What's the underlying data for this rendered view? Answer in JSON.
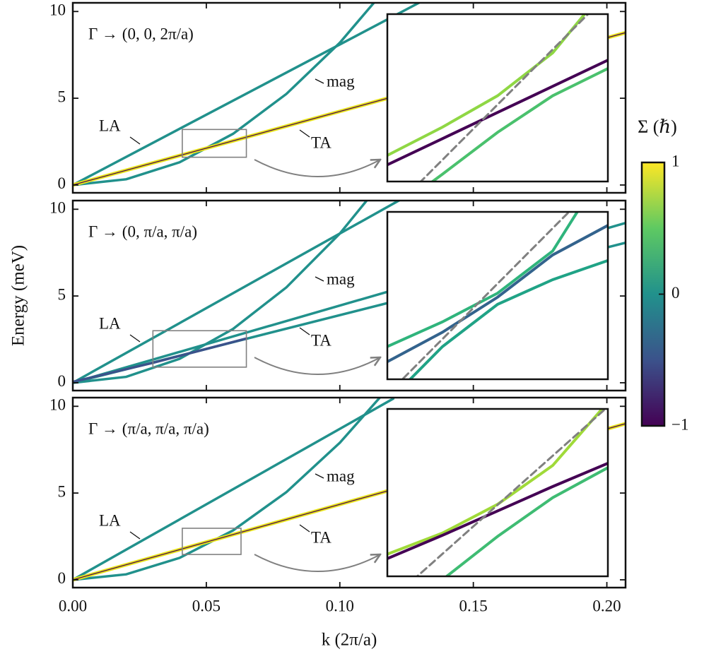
{
  "chart_data": [
    {
      "type": "line",
      "label": "Γ → (0, 0, 2π/a)",
      "xlim": [
        0,
        0.207
      ],
      "ylim": [
        -0.45,
        10.5
      ],
      "xticks": [
        0,
        0.05,
        0.1,
        0.15,
        0.2
      ],
      "yticks": [
        0,
        5,
        10
      ],
      "yticks_labels": [
        0,
        5,
        10
      ],
      "annotations": [
        "LA",
        "TA",
        "mag"
      ],
      "series": [
        {
          "color": "#21918c",
          "x": [
            0,
            0.13
          ],
          "values": [
            0,
            10.53
          ]
        },
        {
          "color": "#21918c",
          "x": [
            0,
            0.02,
            0.04,
            0.06,
            0.08,
            0.1,
            0.12
          ],
          "values": [
            0,
            0.33,
            1.31,
            2.95,
            5.25,
            8.2,
            11.81
          ]
        },
        {
          "color": "#e8e41a",
          "x": [
            0,
            0.207
          ],
          "values": [
            0,
            8.78
          ]
        },
        {
          "color": "#440154",
          "x": [
            0,
            0.207
          ],
          "values": [
            0,
            8.78
          ]
        }
      ],
      "inset": {
        "xlim": [
          0.041,
          0.065
        ],
        "ylim": [
          1.6,
          3.2
        ],
        "series": [
          {
            "color": "#8fd744",
            "x": [
              0.041,
              0.047,
              0.053,
              0.059,
              0.065
            ],
            "values": [
              1.85,
              2.12,
              2.42,
              2.83,
              3.47
            ]
          },
          {
            "color": "#440154",
            "x": [
              0.041,
              0.047,
              0.053,
              0.059,
              0.065
            ],
            "values": [
              1.76,
              2.01,
              2.26,
              2.51,
              2.76
            ]
          },
          {
            "color": "#4ac16d",
            "x": [
              0.041,
              0.047,
              0.053,
              0.059,
              0.065
            ],
            "values": [
              1.28,
              1.67,
              2.07,
              2.42,
              2.68
            ]
          },
          {
            "color": "#808080",
            "dashed": true,
            "x": [
              0.041,
              0.065
            ],
            "values": [
              1.28,
              3.39
            ]
          }
        ]
      }
    },
    {
      "type": "line",
      "label": "Γ → (0, π/a, π/a)",
      "ylabel": "Energy (meV)",
      "xlim": [
        0,
        0.207
      ],
      "ylim": [
        -0.45,
        10.5
      ],
      "xticks": [
        0,
        0.05,
        0.1,
        0.15,
        0.2
      ],
      "yticks": [
        0,
        5,
        10
      ],
      "annotations": [
        "LA",
        "TA",
        "mag"
      ],
      "series": [
        {
          "color": "#21918c",
          "x": [
            0,
            0.125
          ],
          "values": [
            0,
            10.75
          ]
        },
        {
          "color": "#21918c",
          "x": [
            0,
            0.02,
            0.04,
            0.06,
            0.08,
            0.1,
            0.12
          ],
          "values": [
            0,
            0.34,
            1.38,
            3.1,
            5.5,
            8.6,
            12.38
          ]
        },
        {
          "color": "#21918c",
          "x": [
            0,
            0.207
          ],
          "values": [
            0,
            9.21
          ]
        },
        {
          "color": "#21918c",
          "x": [
            0,
            0.207
          ],
          "values": [
            0,
            8.07
          ]
        },
        {
          "color": "#3b528b",
          "x": [
            0,
            0.03,
            0.065
          ],
          "values": [
            0.05,
            1.15,
            2.55
          ]
        }
      ],
      "inset": {
        "xlim": [
          0.03,
          0.065
        ],
        "ylim": [
          0.9,
          3.0
        ],
        "series": [
          {
            "color": "#2fb47c",
            "x": [
              0.03,
              0.03875,
              0.0475,
              0.05625,
              0.065
            ],
            "values": [
              1.31,
              1.62,
              1.98,
              2.51,
              3.61
            ]
          },
          {
            "color": "#33638d",
            "x": [
              0.03,
              0.03875,
              0.0475,
              0.05625,
              0.065
            ],
            "values": [
              1.12,
              1.49,
              1.93,
              2.46,
              2.83
            ]
          },
          {
            "color": "#20a386",
            "x": [
              0.03,
              0.03875,
              0.0475,
              0.05625,
              0.065
            ],
            "values": [
              0.61,
              1.31,
              1.84,
              2.15,
              2.39
            ]
          },
          {
            "color": "#808080",
            "dashed": true,
            "x": [
              0.03,
              0.065
            ],
            "values": [
              0.71,
              3.49
            ]
          }
        ]
      }
    },
    {
      "type": "line",
      "label": "Γ → (π/a, π/a, π/a)",
      "xlabel": "k (2π/a)",
      "xlim": [
        0,
        0.207
      ],
      "ylim": [
        -0.45,
        10.5
      ],
      "xticks": [
        {
          "value": 0,
          "label": "0.00"
        },
        0.05,
        {
          "value": 0.1,
          "label": "0.10"
        },
        0.15,
        {
          "value": 0.2,
          "label": "0.20"
        }
      ],
      "xtick_labels": true,
      "yticks": [
        0,
        5,
        10
      ],
      "annotations": [
        "LA",
        "TA",
        "mag"
      ],
      "series": [
        {
          "color": "#21918c",
          "x": [
            0,
            0.12
          ],
          "values": [
            0,
            10.44
          ]
        },
        {
          "color": "#21918c",
          "x": [
            0,
            0.02,
            0.04,
            0.06,
            0.08,
            0.1,
            0.12
          ],
          "values": [
            0,
            0.316,
            1.264,
            2.844,
            5.056,
            7.9,
            11.376
          ]
        },
        {
          "color": "#e8e41a",
          "x": [
            0,
            0.207
          ],
          "values": [
            0,
            9.0
          ]
        },
        {
          "color": "#440154",
          "x": [
            0,
            0.207
          ],
          "values": [
            0,
            9.0
          ]
        }
      ],
      "inset": {
        "xlim": [
          0.041,
          0.063
        ],
        "ylim": [
          1.46,
          2.97
        ],
        "series": [
          {
            "color": "#a0da39",
            "x": [
              0.041,
              0.0465,
              0.052,
              0.0575,
              0.063
            ],
            "values": [
              1.66,
              1.85,
              2.11,
              2.46,
              3.03
            ]
          },
          {
            "color": "#440154",
            "x": [
              0.041,
              0.0465,
              0.052,
              0.0575,
              0.063
            ],
            "values": [
              1.62,
              1.83,
              2.05,
              2.27,
              2.48
            ]
          },
          {
            "color": "#3fbc73",
            "x": [
              0.041,
              0.0465,
              0.052,
              0.0575,
              0.063
            ],
            "values": [
              1.06,
              1.43,
              1.82,
              2.17,
              2.44
            ]
          },
          {
            "color": "#808080",
            "dashed": true,
            "x": [
              0.041,
              0.063
            ],
            "values": [
              1.22,
              2.99
            ]
          }
        ]
      }
    }
  ],
  "colorbar": {
    "label": "Σ (ℏ)",
    "lim": [
      -1,
      1
    ],
    "ticks": [
      {
        "value": -1,
        "label": "−1"
      },
      0,
      1
    ],
    "colormap": [
      "#440154",
      "#3b528b",
      "#21918c",
      "#5ec962",
      "#fde725"
    ]
  }
}
